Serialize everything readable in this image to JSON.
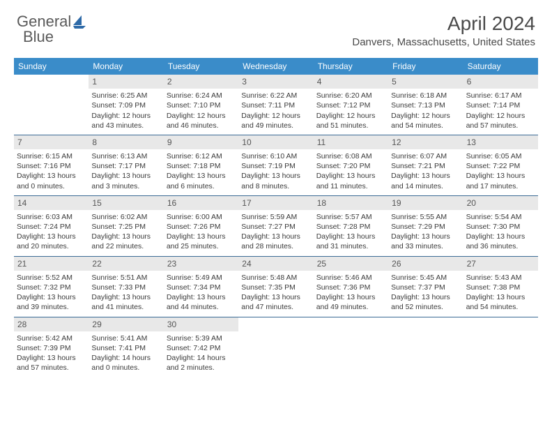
{
  "brand": {
    "part1": "General",
    "part2": "Blue"
  },
  "title": "April 2024",
  "location": "Danvers, Massachusetts, United States",
  "colors": {
    "header_bg": "#3a8cc9",
    "divider": "#3a6a95",
    "daynum_bg": "#e8e8e8",
    "text": "#3a3a3a",
    "logo_blue": "#2e6aa8"
  },
  "dow": [
    "Sunday",
    "Monday",
    "Tuesday",
    "Wednesday",
    "Thursday",
    "Friday",
    "Saturday"
  ],
  "weeks": [
    [
      {
        "n": "",
        "empty": true
      },
      {
        "n": "1",
        "sr": "6:25 AM",
        "ss": "7:09 PM",
        "dl": "12 hours and 43 minutes."
      },
      {
        "n": "2",
        "sr": "6:24 AM",
        "ss": "7:10 PM",
        "dl": "12 hours and 46 minutes."
      },
      {
        "n": "3",
        "sr": "6:22 AM",
        "ss": "7:11 PM",
        "dl": "12 hours and 49 minutes."
      },
      {
        "n": "4",
        "sr": "6:20 AM",
        "ss": "7:12 PM",
        "dl": "12 hours and 51 minutes."
      },
      {
        "n": "5",
        "sr": "6:18 AM",
        "ss": "7:13 PM",
        "dl": "12 hours and 54 minutes."
      },
      {
        "n": "6",
        "sr": "6:17 AM",
        "ss": "7:14 PM",
        "dl": "12 hours and 57 minutes."
      }
    ],
    [
      {
        "n": "7",
        "sr": "6:15 AM",
        "ss": "7:16 PM",
        "dl": "13 hours and 0 minutes."
      },
      {
        "n": "8",
        "sr": "6:13 AM",
        "ss": "7:17 PM",
        "dl": "13 hours and 3 minutes."
      },
      {
        "n": "9",
        "sr": "6:12 AM",
        "ss": "7:18 PM",
        "dl": "13 hours and 6 minutes."
      },
      {
        "n": "10",
        "sr": "6:10 AM",
        "ss": "7:19 PM",
        "dl": "13 hours and 8 minutes."
      },
      {
        "n": "11",
        "sr": "6:08 AM",
        "ss": "7:20 PM",
        "dl": "13 hours and 11 minutes."
      },
      {
        "n": "12",
        "sr": "6:07 AM",
        "ss": "7:21 PM",
        "dl": "13 hours and 14 minutes."
      },
      {
        "n": "13",
        "sr": "6:05 AM",
        "ss": "7:22 PM",
        "dl": "13 hours and 17 minutes."
      }
    ],
    [
      {
        "n": "14",
        "sr": "6:03 AM",
        "ss": "7:24 PM",
        "dl": "13 hours and 20 minutes."
      },
      {
        "n": "15",
        "sr": "6:02 AM",
        "ss": "7:25 PM",
        "dl": "13 hours and 22 minutes."
      },
      {
        "n": "16",
        "sr": "6:00 AM",
        "ss": "7:26 PM",
        "dl": "13 hours and 25 minutes."
      },
      {
        "n": "17",
        "sr": "5:59 AM",
        "ss": "7:27 PM",
        "dl": "13 hours and 28 minutes."
      },
      {
        "n": "18",
        "sr": "5:57 AM",
        "ss": "7:28 PM",
        "dl": "13 hours and 31 minutes."
      },
      {
        "n": "19",
        "sr": "5:55 AM",
        "ss": "7:29 PM",
        "dl": "13 hours and 33 minutes."
      },
      {
        "n": "20",
        "sr": "5:54 AM",
        "ss": "7:30 PM",
        "dl": "13 hours and 36 minutes."
      }
    ],
    [
      {
        "n": "21",
        "sr": "5:52 AM",
        "ss": "7:32 PM",
        "dl": "13 hours and 39 minutes."
      },
      {
        "n": "22",
        "sr": "5:51 AM",
        "ss": "7:33 PM",
        "dl": "13 hours and 41 minutes."
      },
      {
        "n": "23",
        "sr": "5:49 AM",
        "ss": "7:34 PM",
        "dl": "13 hours and 44 minutes."
      },
      {
        "n": "24",
        "sr": "5:48 AM",
        "ss": "7:35 PM",
        "dl": "13 hours and 47 minutes."
      },
      {
        "n": "25",
        "sr": "5:46 AM",
        "ss": "7:36 PM",
        "dl": "13 hours and 49 minutes."
      },
      {
        "n": "26",
        "sr": "5:45 AM",
        "ss": "7:37 PM",
        "dl": "13 hours and 52 minutes."
      },
      {
        "n": "27",
        "sr": "5:43 AM",
        "ss": "7:38 PM",
        "dl": "13 hours and 54 minutes."
      }
    ],
    [
      {
        "n": "28",
        "sr": "5:42 AM",
        "ss": "7:39 PM",
        "dl": "13 hours and 57 minutes."
      },
      {
        "n": "29",
        "sr": "5:41 AM",
        "ss": "7:41 PM",
        "dl": "14 hours and 0 minutes."
      },
      {
        "n": "30",
        "sr": "5:39 AM",
        "ss": "7:42 PM",
        "dl": "14 hours and 2 minutes."
      },
      {
        "n": "",
        "empty": true
      },
      {
        "n": "",
        "empty": true
      },
      {
        "n": "",
        "empty": true
      },
      {
        "n": "",
        "empty": true
      }
    ]
  ],
  "labels": {
    "sunrise": "Sunrise:",
    "sunset": "Sunset:",
    "daylight": "Daylight:"
  }
}
